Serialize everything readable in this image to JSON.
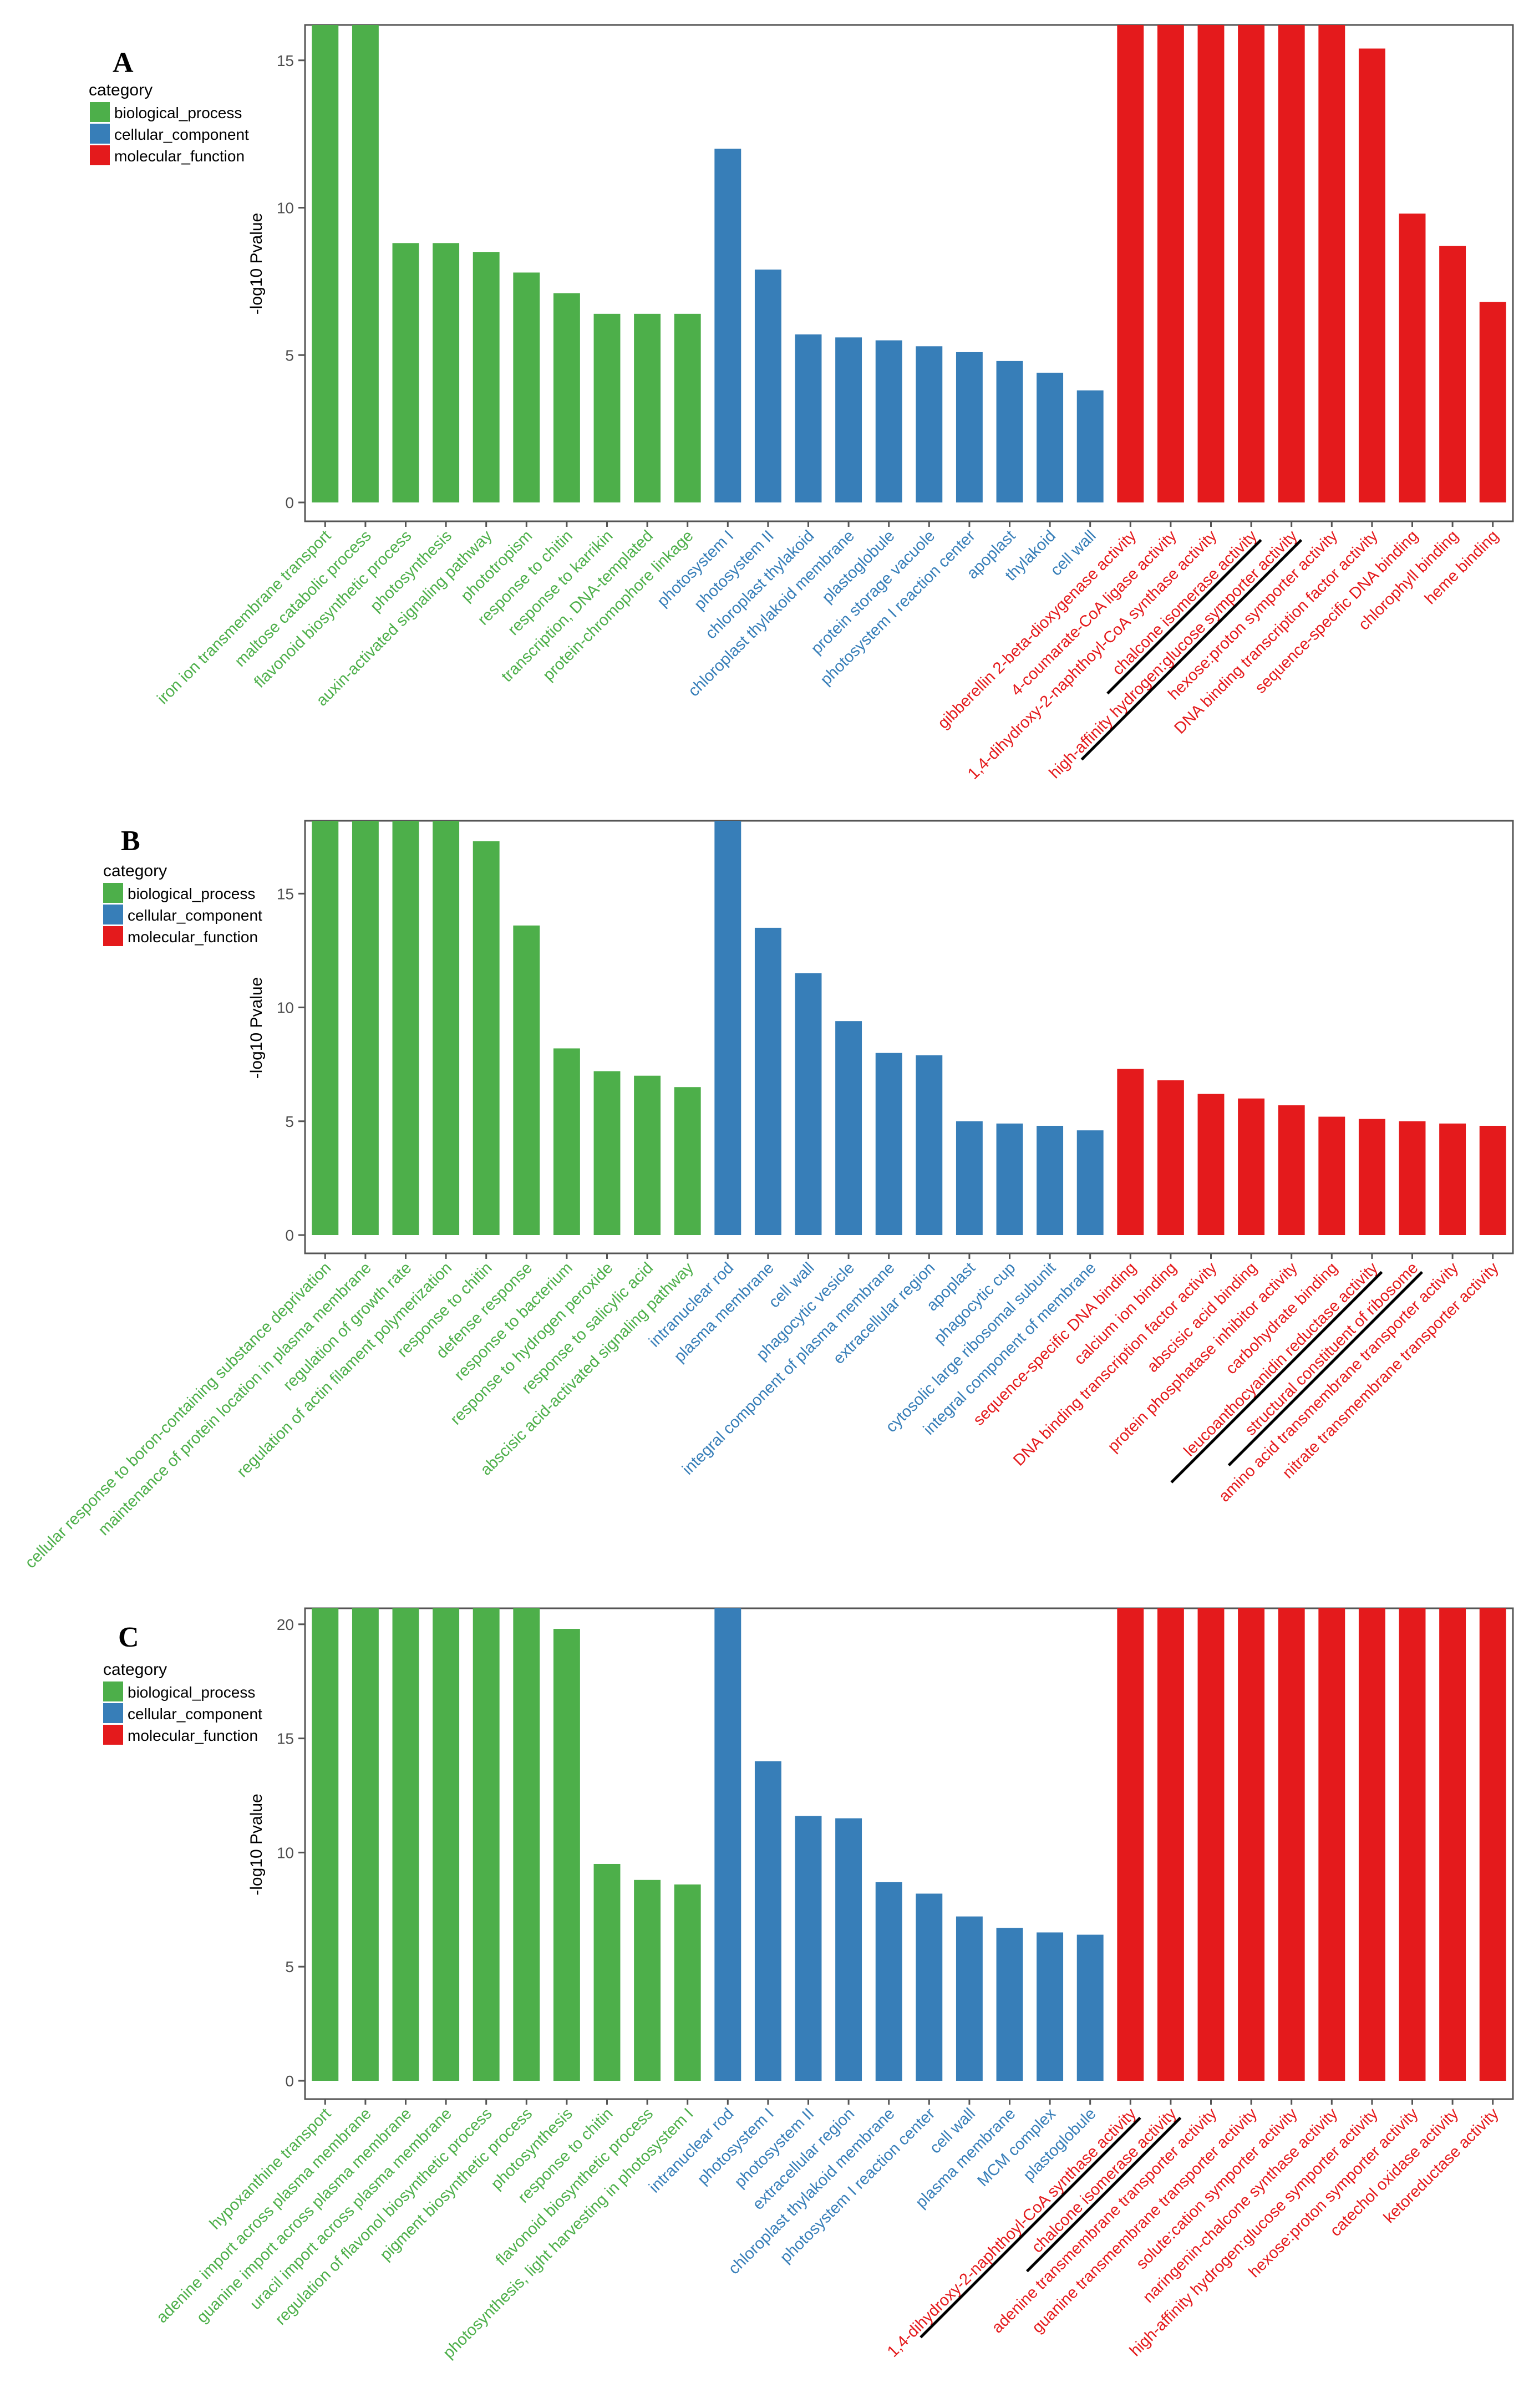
{
  "legend": {
    "title": "category",
    "items": [
      {
        "key": "biological_process",
        "label": "biological_process"
      },
      {
        "key": "cellular_component",
        "label": "cellular_component"
      },
      {
        "key": "molecular_function",
        "label": "molecular_function"
      }
    ]
  },
  "colors": {
    "biological_process": "#4daf4a",
    "cellular_component": "#377eb8",
    "molecular_function": "#e41a1c",
    "panel_border": "#555555",
    "axis_text": "#4d4d4d",
    "underline": "#000000"
  },
  "chart_data": [
    {
      "type": "bar",
      "panel": "A",
      "ylabel": "-log10 Pvalue",
      "ylim": [
        0,
        16.2
      ],
      "yticks": [
        0,
        5,
        10,
        15
      ],
      "underlined_categories": [
        "chalcone isomerase activity",
        "high-affinity hydrogen:glucose symporter activity"
      ],
      "categories": [
        "iron ion transmembrane transport",
        "maltose catabolic process",
        "flavonoid biosynthetic process",
        "photosynthesis",
        "auxin-activated signaling pathway",
        "phototropism",
        "response to chitin",
        "response to karrikin",
        "transcription, DNA-templated",
        "protein-chromophore linkage",
        "photosystem I",
        "photosystem II",
        "chloroplast thylakoid",
        "chloroplast thylakoid membrane",
        "plastoglobule",
        "protein storage vacuole",
        "photosystem I reaction center",
        "apoplast",
        "thylakoid",
        "cell wall",
        "gibberellin 2-beta-dioxygenase activity",
        "4-coumarate-CoA ligase activity",
        "1,4-dihydroxy-2-naphthoyl-CoA synthase activity",
        "chalcone isomerase activity",
        "high-affinity hydrogen:glucose symporter activity",
        "hexose:proton symporter activity",
        "DNA binding transcription factor activity",
        "sequence-specific DNA binding",
        "chlorophyll binding",
        "heme binding"
      ],
      "groups": [
        "biological_process",
        "biological_process",
        "biological_process",
        "biological_process",
        "biological_process",
        "biological_process",
        "biological_process",
        "biological_process",
        "biological_process",
        "biological_process",
        "cellular_component",
        "cellular_component",
        "cellular_component",
        "cellular_component",
        "cellular_component",
        "cellular_component",
        "cellular_component",
        "cellular_component",
        "cellular_component",
        "cellular_component",
        "molecular_function",
        "molecular_function",
        "molecular_function",
        "molecular_function",
        "molecular_function",
        "molecular_function",
        "molecular_function",
        "molecular_function",
        "molecular_function",
        "molecular_function"
      ],
      "values": [
        16.2,
        16.2,
        8.8,
        8.8,
        8.5,
        7.8,
        7.1,
        6.4,
        6.4,
        6.4,
        12.0,
        7.9,
        5.7,
        5.6,
        5.5,
        5.3,
        5.1,
        4.8,
        4.4,
        3.8,
        16.2,
        16.2,
        16.2,
        16.2,
        16.2,
        16.2,
        15.4,
        9.8,
        8.7,
        6.8
      ]
    },
    {
      "type": "bar",
      "panel": "B",
      "ylabel": "-log10 Pvalue",
      "ylim": [
        0,
        18.2
      ],
      "yticks": [
        0,
        5,
        10,
        15
      ],
      "underlined_categories": [
        "structural constituent of ribosome",
        "leucoanthocyanidin reductase activity"
      ],
      "categories": [
        "cellular response to boron-containing substance deprivation",
        "maintenance of protein location in plasma membrane",
        "regulation of growth rate",
        "regulation of actin filament polymerization",
        "response to chitin",
        "defense response",
        "response to bacterium",
        "response to hydrogen peroxide",
        "response to salicylic acid",
        "abscisic acid-activated signaling pathway",
        "intranuclear rod",
        "plasma membrane",
        "cell wall",
        "phagocytic vesicle",
        "integral component of plasma membrane",
        "extracellular region",
        "apoplast",
        "phagocytic cup",
        "cytosolic large ribosomal subunit",
        "integral component of membrane",
        "sequence-specific DNA binding",
        "calcium ion binding",
        "DNA binding transcription factor activity",
        "abscisic acid binding",
        "protein phosphatase inhibitor activity",
        "carbohydrate binding",
        "leucoanthocyanidin reductase activity",
        "structural constituent of ribosome",
        "amino acid transmembrane transporter activity",
        "nitrate transmembrane transporter activity"
      ],
      "groups": [
        "biological_process",
        "biological_process",
        "biological_process",
        "biological_process",
        "biological_process",
        "biological_process",
        "biological_process",
        "biological_process",
        "biological_process",
        "biological_process",
        "cellular_component",
        "cellular_component",
        "cellular_component",
        "cellular_component",
        "cellular_component",
        "cellular_component",
        "cellular_component",
        "cellular_component",
        "cellular_component",
        "cellular_component",
        "molecular_function",
        "molecular_function",
        "molecular_function",
        "molecular_function",
        "molecular_function",
        "molecular_function",
        "molecular_function",
        "molecular_function",
        "molecular_function",
        "molecular_function"
      ],
      "values": [
        18.2,
        18.2,
        18.2,
        18.2,
        17.3,
        13.6,
        8.2,
        7.2,
        7.0,
        6.5,
        18.2,
        13.5,
        11.5,
        9.4,
        8.0,
        7.9,
        5.0,
        4.9,
        4.8,
        4.6,
        7.3,
        6.8,
        6.2,
        6.0,
        5.7,
        5.2,
        5.1,
        5.0,
        4.9,
        4.8
      ]
    },
    {
      "type": "bar",
      "panel": "C",
      "ylabel": "-log10 Pvalue",
      "ylim": [
        0,
        20.7
      ],
      "yticks": [
        0,
        5,
        10,
        15,
        20
      ],
      "underlined_categories": [
        "chalcone isomerase activity",
        "1,4-dihydroxy-2-naphthoyl-CoA synthase activity"
      ],
      "categories": [
        "hypoxanthine transport",
        "adenine import across plasma membrane",
        "guanine import across plasma membrane",
        "uracil import across plasma membrane",
        "regulation of flavonol biosynthetic process",
        "pigment biosynthetic process",
        "photosynthesis",
        "response to chitin",
        "flavonoid biosynthetic process",
        "photosynthesis, light harvesting in photosystem I",
        "intranuclear rod",
        "photosystem I",
        "photosystem II",
        "extracellular region",
        "chloroplast thylakoid membrane",
        "photosystem I reaction center",
        "cell wall",
        "plasma membrane",
        "MCM complex",
        "plastoglobule",
        "1,4-dihydroxy-2-naphthoyl-CoA synthase activity",
        "chalcone isomerase activity",
        "adenine transmembrane transporter activity",
        "guanine transmembrane transporter activity",
        "solute:cation symporter activity",
        "naringenin-chalcone synthase activity",
        "high-affinity hydrogen:glucose symporter activity",
        "hexose:proton symporter activity",
        "catechol oxidase activity",
        "ketoreductase activity"
      ],
      "groups": [
        "biological_process",
        "biological_process",
        "biological_process",
        "biological_process",
        "biological_process",
        "biological_process",
        "biological_process",
        "biological_process",
        "biological_process",
        "biological_process",
        "cellular_component",
        "cellular_component",
        "cellular_component",
        "cellular_component",
        "cellular_component",
        "cellular_component",
        "cellular_component",
        "cellular_component",
        "cellular_component",
        "cellular_component",
        "molecular_function",
        "molecular_function",
        "molecular_function",
        "molecular_function",
        "molecular_function",
        "molecular_function",
        "molecular_function",
        "molecular_function",
        "molecular_function",
        "molecular_function"
      ],
      "values": [
        20.7,
        20.7,
        20.7,
        20.7,
        20.7,
        20.7,
        19.8,
        9.5,
        8.8,
        8.6,
        20.7,
        14.0,
        11.6,
        11.5,
        8.7,
        8.2,
        7.2,
        6.7,
        6.5,
        6.4,
        20.7,
        20.7,
        20.7,
        20.7,
        20.7,
        20.7,
        20.7,
        20.7,
        20.7,
        20.7
      ]
    }
  ]
}
